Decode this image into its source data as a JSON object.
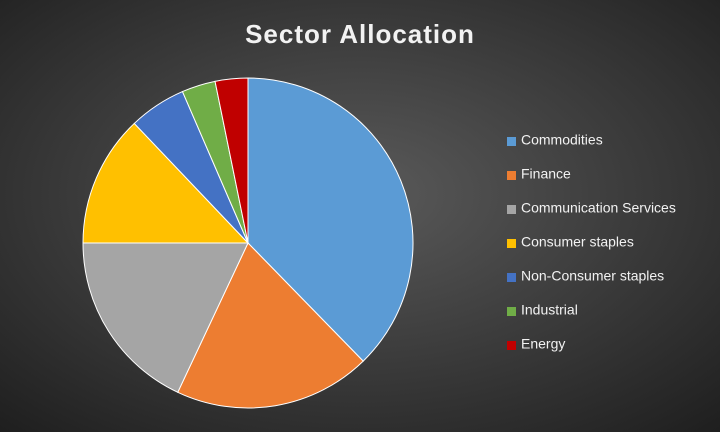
{
  "chart_data": {
    "type": "pie",
    "title": "Sector Allocation",
    "categories": [
      "Commodities",
      "Finance",
      "Communication Services",
      "Consumer staples",
      "Non-Consumer staples",
      "Industrial",
      "Energy"
    ],
    "values": [
      37.7,
      19.3,
      18,
      12.9,
      5.6,
      3.3,
      3.2
    ],
    "colors": [
      "#5b9bd5",
      "#ed7d31",
      "#a5a5a5",
      "#ffc000",
      "#4472c4",
      "#70ad47",
      "#c00000"
    ],
    "legend": "right"
  }
}
